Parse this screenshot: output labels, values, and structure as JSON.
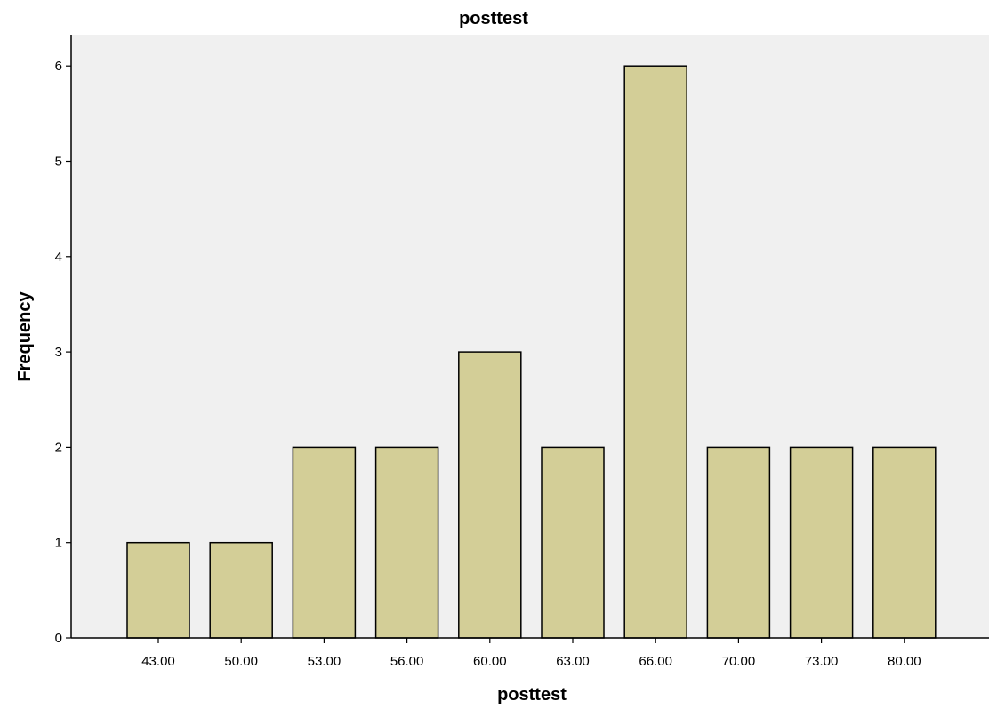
{
  "chart_data": {
    "type": "bar",
    "title": "posttest",
    "xlabel": "posttest",
    "ylabel": "Frequency",
    "categories": [
      "43.00",
      "50.00",
      "53.00",
      "56.00",
      "60.00",
      "63.00",
      "66.00",
      "70.00",
      "73.00",
      "80.00"
    ],
    "values": [
      1,
      1,
      2,
      2,
      3,
      2,
      6,
      2,
      2,
      2
    ],
    "ylim": [
      0,
      6.4
    ],
    "yticks": [
      "0",
      "1",
      "2",
      "3",
      "4",
      "5",
      "6"
    ],
    "grid": false,
    "colors": {
      "plot_background": "#f0f0f0",
      "bar_fill": "#d3ce97",
      "bar_stroke": "#000000"
    }
  }
}
